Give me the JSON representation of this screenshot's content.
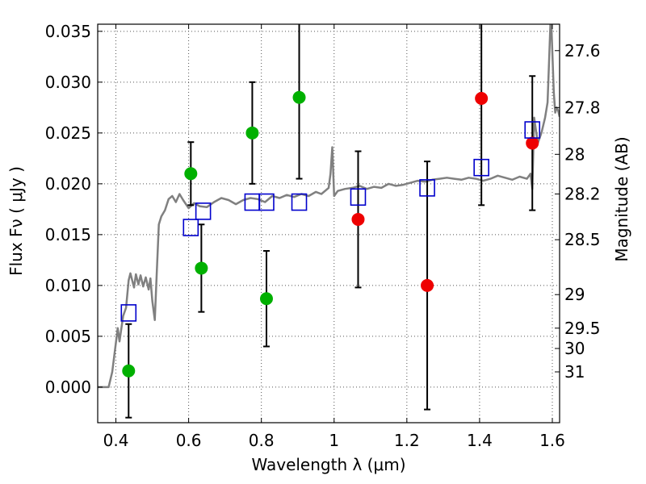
{
  "chart_data": {
    "type": "scatter",
    "xlabel": "Wavelength  λ (μm)",
    "ylabel": "Flux  Fν  ( μJy )",
    "y2label": "Magnitude (AB)",
    "xlim": [
      0.35,
      1.62
    ],
    "ylim": [
      -0.0035,
      0.0357
    ],
    "grid": true,
    "x_ticks": [
      {
        "value": 0.4,
        "label": "0.4"
      },
      {
        "value": 0.6,
        "label": "0.6"
      },
      {
        "value": 0.8,
        "label": "0.8"
      },
      {
        "value": 1.0,
        "label": "1"
      },
      {
        "value": 1.2,
        "label": "1.2"
      },
      {
        "value": 1.4,
        "label": "1.4"
      },
      {
        "value": 1.6,
        "label": "1.6"
      }
    ],
    "y_ticks": [
      {
        "value": 0.0,
        "label": "0.000"
      },
      {
        "value": 0.005,
        "label": "0.005"
      },
      {
        "value": 0.01,
        "label": "0.010"
      },
      {
        "value": 0.015,
        "label": "0.015"
      },
      {
        "value": 0.02,
        "label": "0.020"
      },
      {
        "value": 0.025,
        "label": "0.025"
      },
      {
        "value": 0.03,
        "label": "0.030"
      },
      {
        "value": 0.035,
        "label": "0.035"
      }
    ],
    "y2_ticks": [
      {
        "label": "27.6",
        "flux": 0.0331
      },
      {
        "label": "27.8",
        "flux": 0.0275
      },
      {
        "label": "28",
        "flux": 0.0229
      },
      {
        "label": "28.2",
        "flux": 0.019
      },
      {
        "label": "28.5",
        "flux": 0.0145
      },
      {
        "label": "29",
        "flux": 0.0091
      },
      {
        "label": "29.5",
        "flux": 0.0058
      },
      {
        "label": "30",
        "flux": 0.0038
      },
      {
        "label": "31",
        "flux": 0.0015
      }
    ],
    "colors": {
      "spectrum": "#808080",
      "model_boxes": "#0000cc",
      "green_points": "#00b000",
      "red_points": "#ee0000",
      "error_bars": "#000000",
      "grid": "#555555"
    },
    "series": [
      {
        "role": "green-points",
        "marker": "circle",
        "x": [
          0.435,
          0.606,
          0.635,
          0.775,
          0.814,
          0.904
        ],
        "y": [
          0.0016,
          0.021,
          0.0117,
          0.025,
          0.0087,
          0.0285
        ],
        "y_err_low": [
          0.0046,
          0.0031,
          0.0043,
          0.005,
          0.0047,
          0.008
        ],
        "y_err_high": [
          0.0046,
          0.0031,
          0.0043,
          0.005,
          0.0047,
          0.008
        ]
      },
      {
        "role": "red-points",
        "marker": "circle",
        "x": [
          1.066,
          1.256,
          1.405,
          1.545
        ],
        "y": [
          0.0165,
          0.01,
          0.0284,
          0.024
        ],
        "y_err_low": [
          0.0067,
          0.0122,
          0.0105,
          0.0066
        ],
        "y_err_high": [
          0.0067,
          0.0122,
          0.0105,
          0.0066
        ]
      },
      {
        "role": "model-boxes",
        "marker": "square",
        "x": [
          0.435,
          0.606,
          0.64,
          0.775,
          0.814,
          0.904,
          1.066,
          1.256,
          1.405,
          1.545
        ],
        "y": [
          0.0073,
          0.0157,
          0.0173,
          0.0182,
          0.0182,
          0.0182,
          0.0187,
          0.0196,
          0.0216,
          0.0253
        ]
      },
      {
        "role": "spectrum-line",
        "x": [
          0.35,
          0.38,
          0.39,
          0.405,
          0.41,
          0.42,
          0.428,
          0.435,
          0.44,
          0.45,
          0.455,
          0.462,
          0.468,
          0.475,
          0.482,
          0.49,
          0.495,
          0.5,
          0.507,
          0.512,
          0.518,
          0.525,
          0.535,
          0.545,
          0.555,
          0.565,
          0.575,
          0.585,
          0.6,
          0.615,
          0.63,
          0.65,
          0.67,
          0.69,
          0.71,
          0.73,
          0.75,
          0.77,
          0.79,
          0.81,
          0.83,
          0.85,
          0.87,
          0.89,
          0.91,
          0.93,
          0.95,
          0.965,
          0.985,
          0.99,
          0.995,
          1.0,
          1.01,
          1.03,
          1.05,
          1.07,
          1.09,
          1.11,
          1.13,
          1.15,
          1.17,
          1.19,
          1.21,
          1.23,
          1.25,
          1.27,
          1.29,
          1.31,
          1.33,
          1.35,
          1.37,
          1.39,
          1.41,
          1.43,
          1.45,
          1.47,
          1.49,
          1.51,
          1.53,
          1.54,
          1.545,
          1.55,
          1.56,
          1.57,
          1.58,
          1.587,
          1.592,
          1.596,
          1.6,
          1.604,
          1.608,
          1.612,
          1.616,
          1.62
        ],
        "y": [
          0.0,
          0.0,
          0.0015,
          0.0058,
          0.0045,
          0.007,
          0.0078,
          0.0105,
          0.0112,
          0.0098,
          0.0111,
          0.0101,
          0.011,
          0.0099,
          0.0108,
          0.0096,
          0.0107,
          0.0085,
          0.0066,
          0.011,
          0.016,
          0.0168,
          0.0174,
          0.0185,
          0.0188,
          0.0182,
          0.019,
          0.0184,
          0.0176,
          0.0181,
          0.0178,
          0.0177,
          0.0182,
          0.0186,
          0.0184,
          0.018,
          0.0184,
          0.0186,
          0.0185,
          0.0182,
          0.0188,
          0.0186,
          0.0189,
          0.0187,
          0.019,
          0.0188,
          0.0192,
          0.019,
          0.0196,
          0.021,
          0.0236,
          0.0188,
          0.0193,
          0.0195,
          0.0196,
          0.0198,
          0.0195,
          0.0197,
          0.0196,
          0.02,
          0.0198,
          0.0199,
          0.0201,
          0.0203,
          0.0202,
          0.0204,
          0.0205,
          0.0206,
          0.0205,
          0.0204,
          0.0206,
          0.0205,
          0.0203,
          0.0205,
          0.0208,
          0.0206,
          0.0204,
          0.0207,
          0.0205,
          0.021,
          0.0195,
          0.0265,
          0.024,
          0.025,
          0.0265,
          0.028,
          0.033,
          0.037,
          0.033,
          0.029,
          0.027,
          0.0275,
          0.0272,
          0.0266
        ]
      }
    ]
  }
}
